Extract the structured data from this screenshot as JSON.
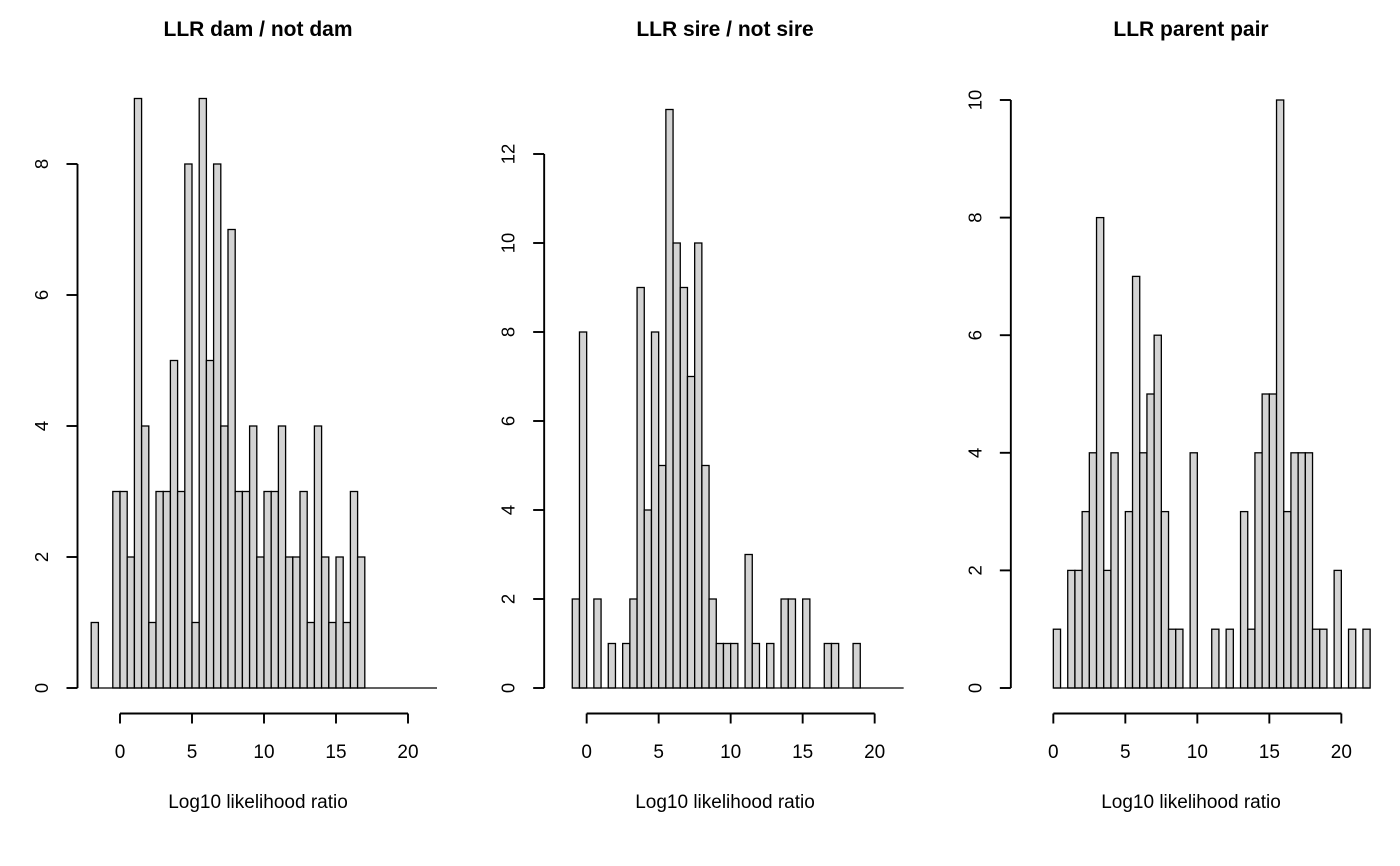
{
  "figure": {
    "background_color": "#ffffff",
    "bar_fill_color": "#d3d3d3",
    "line_color": "#000000",
    "text_color": "#000000"
  },
  "chart_data": [
    {
      "type": "bar",
      "subtype": "histogram",
      "title": "LLR dam / not dam",
      "xlabel": "Log10 likelihood ratio",
      "ylabel": "",
      "bin_start": -2,
      "bin_width": 0.5,
      "counts": [
        1,
        0,
        0,
        3,
        3,
        2,
        9,
        4,
        1,
        3,
        3,
        5,
        3,
        8,
        1,
        9,
        5,
        8,
        4,
        7,
        3,
        3,
        4,
        2,
        3,
        3,
        4,
        2,
        2,
        3,
        1,
        4,
        2,
        1,
        2,
        1,
        3,
        2
      ],
      "xticks": [
        0,
        5,
        10,
        15,
        20
      ],
      "yticks": [
        0,
        2,
        4,
        6,
        8
      ],
      "xlim": [
        -3,
        22
      ],
      "ylim": [
        0,
        9
      ],
      "grid": "off",
      "legend": "none"
    },
    {
      "type": "bar",
      "subtype": "histogram",
      "title": "LLR sire / not sire",
      "xlabel": "Log10 likelihood ratio",
      "ylabel": "",
      "bin_start": -1,
      "bin_width": 0.5,
      "counts": [
        2,
        8,
        0,
        2,
        0,
        1,
        0,
        1,
        2,
        9,
        4,
        8,
        5,
        13,
        10,
        9,
        7,
        10,
        5,
        2,
        1,
        1,
        1,
        0,
        3,
        1,
        0,
        1,
        0,
        2,
        2,
        0,
        2,
        0,
        0,
        1,
        1,
        0,
        0,
        1
      ],
      "xticks": [
        0,
        5,
        10,
        15,
        20
      ],
      "yticks": [
        0,
        2,
        4,
        6,
        8,
        10,
        12
      ],
      "xlim": [
        -3,
        22
      ],
      "ylim": [
        0,
        13
      ],
      "grid": "off",
      "legend": "none"
    },
    {
      "type": "bar",
      "subtype": "histogram",
      "title": "LLR parent pair",
      "xlabel": "Log10 likelihood ratio",
      "ylabel": "",
      "bin_start": 0,
      "bin_width": 0.5,
      "counts": [
        1,
        0,
        2,
        2,
        3,
        4,
        8,
        2,
        4,
        0,
        3,
        7,
        4,
        5,
        6,
        3,
        1,
        1,
        0,
        4,
        0,
        0,
        1,
        0,
        1,
        0,
        3,
        1,
        4,
        5,
        5,
        10,
        3,
        4,
        4,
        4,
        1,
        1,
        0,
        2,
        0,
        1,
        0,
        1
      ],
      "xticks": [
        0,
        5,
        10,
        15,
        20
      ],
      "yticks": [
        0,
        2,
        4,
        6,
        8,
        10
      ],
      "xlim": [
        -3,
        22
      ],
      "ylim": [
        0,
        10
      ],
      "grid": "off",
      "legend": "none"
    }
  ]
}
